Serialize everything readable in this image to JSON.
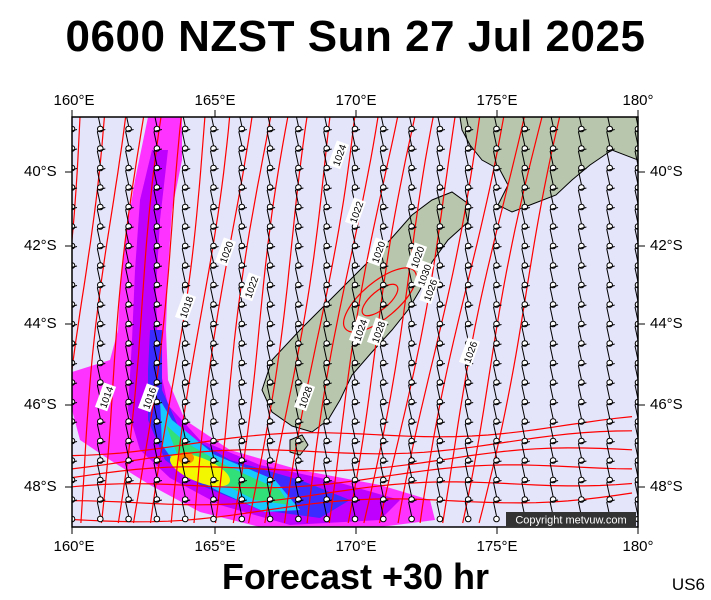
{
  "title": "0600 NZST Sun 27 Jul 2025",
  "footer": "Forecast +30 hr",
  "model_code": "US6",
  "copyright": "Copyright metvuw.com",
  "map": {
    "lon_labels": [
      "160°E",
      "165°E",
      "170°E",
      "175°E",
      "180°"
    ],
    "lat_labels": [
      "40°S",
      "42°S",
      "44°S",
      "46°S",
      "48°S"
    ],
    "isobar_labels": [
      "1024",
      "1022",
      "1020",
      "1020",
      "1022",
      "1018",
      "1016",
      "1014",
      "1020",
      "1030",
      "1028",
      "1026",
      "1028",
      "1026",
      "1024"
    ],
    "colors": {
      "ocean": "#e4e4fb",
      "land": "#b7c6ad",
      "isobar": "#ff0000",
      "precip_light": "#ff33ff",
      "precip_mid": "#3b2bff",
      "precip_high": "#f3f700"
    }
  }
}
